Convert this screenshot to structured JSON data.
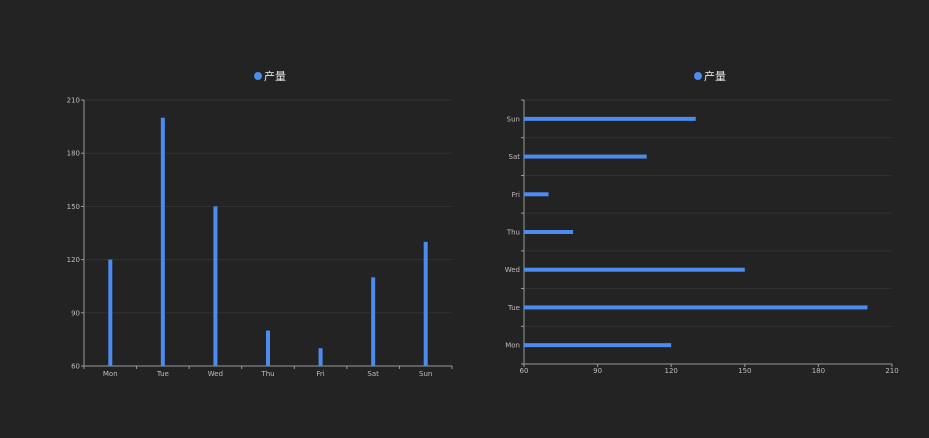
{
  "colors": {
    "background": "#232323",
    "series": "#4a8cf0",
    "axis": "#9a9a9a",
    "grid": "#333333",
    "text": "#bdbdbd"
  },
  "chart_data": [
    {
      "type": "bar",
      "orientation": "vertical",
      "legend": "产量",
      "categories": [
        "Mon",
        "Tue",
        "Wed",
        "Thu",
        "Fri",
        "Sat",
        "Sun"
      ],
      "values": [
        120,
        200,
        150,
        80,
        70,
        110,
        130
      ],
      "ylim": [
        60,
        210
      ],
      "yticks": [
        60,
        90,
        120,
        150,
        180,
        210
      ],
      "grid": true
    },
    {
      "type": "bar",
      "orientation": "horizontal",
      "legend": "产量",
      "categories": [
        "Mon",
        "Tue",
        "Wed",
        "Thu",
        "Fri",
        "Sat",
        "Sun"
      ],
      "values": [
        120,
        200,
        150,
        80,
        70,
        110,
        130
      ],
      "xlim": [
        60,
        210
      ],
      "xticks": [
        60,
        90,
        120,
        150,
        180,
        210
      ],
      "grid": true
    }
  ]
}
